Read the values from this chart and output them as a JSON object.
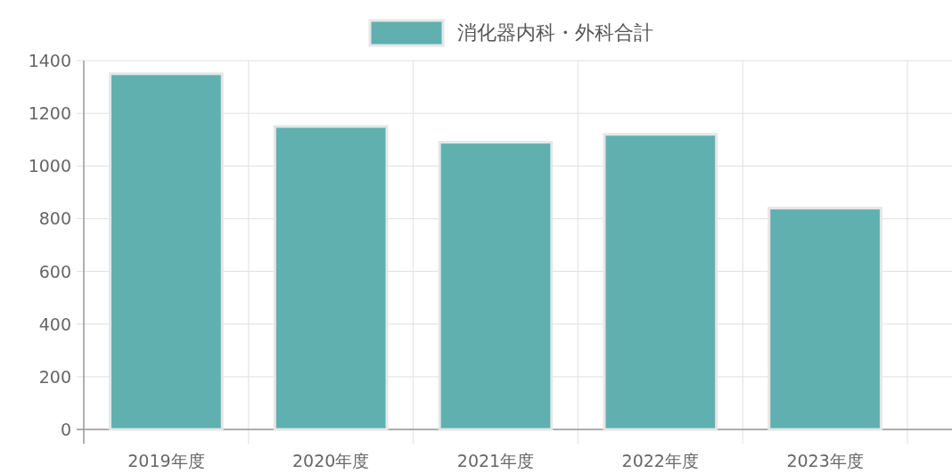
{
  "chart_data": {
    "type": "bar",
    "categories": [
      "2019年度",
      "2020年度",
      "2021年度",
      "2022年度",
      "2023年度"
    ],
    "series": [
      {
        "name": "消化器内科・外科合計",
        "color": "#60b0b0",
        "values": [
          1350,
          1150,
          1090,
          1120,
          840
        ]
      }
    ],
    "ylim": [
      0,
      1400
    ],
    "yticks": [
      0,
      200,
      400,
      600,
      800,
      1000,
      1200,
      1400
    ],
    "grid": true,
    "legend": "top"
  }
}
